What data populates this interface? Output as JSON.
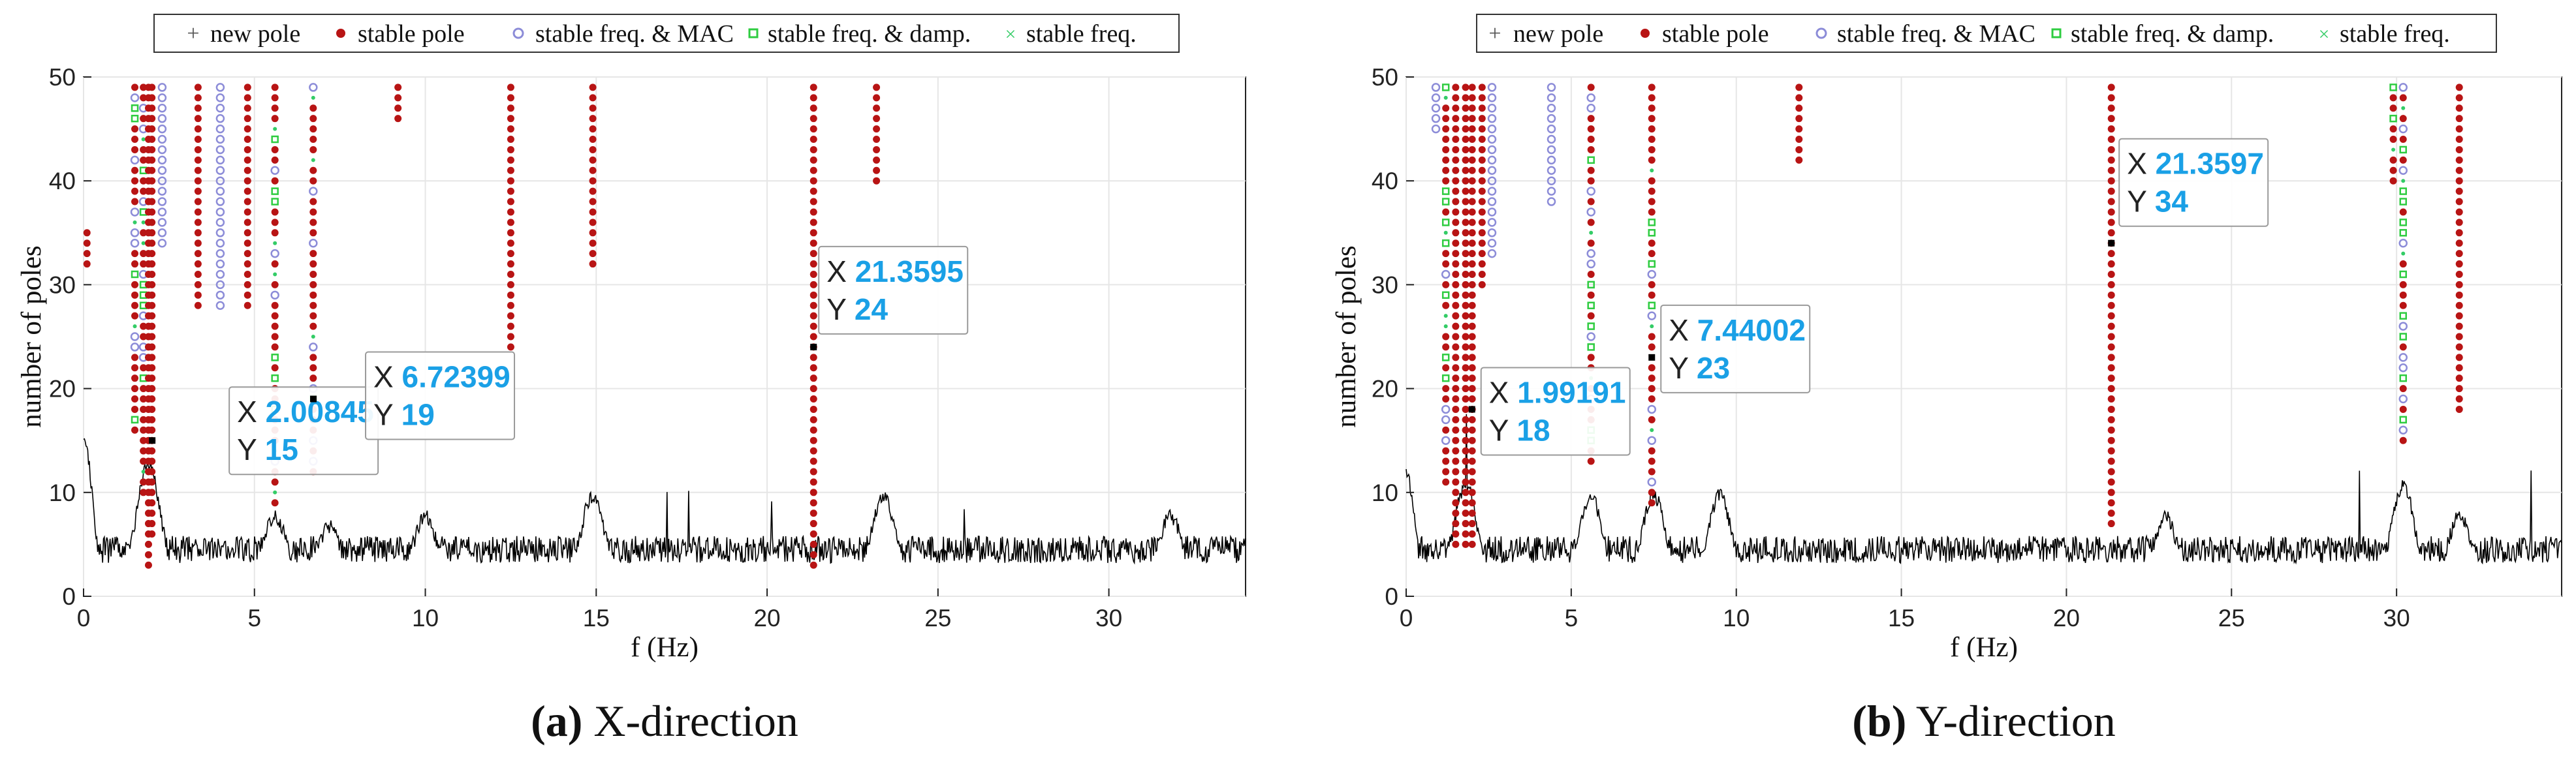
{
  "legend": {
    "new_pole": "new pole",
    "stable_pole": "stable pole",
    "stable_freq_mac": "stable freq. & MAC",
    "stable_freq_damp": "stable freq. & damp.",
    "stable_freq": "stable freq."
  },
  "colors": {
    "stable_pole": "#b81414",
    "stable_freq_mac": "#8c8cd8",
    "stable_freq_damp": "#2ecc40",
    "stable_freq": "#33cc66",
    "new_pole": "#555555",
    "datatip_value": "#1aa0e6",
    "psd": "#000000"
  },
  "chart_data": [
    {
      "type": "scatter",
      "subtype": "stabilization-diagram",
      "panel": "a",
      "caption_letter": "(a)",
      "caption_text": "X-direction",
      "xlabel": "f (Hz)",
      "ylabel": "number of poles",
      "xlim": [
        0,
        34
      ],
      "ylim": [
        0,
        50
      ],
      "xticks": [
        0,
        5,
        10,
        15,
        20,
        25,
        30
      ],
      "yticks": [
        0,
        10,
        20,
        30,
        40,
        50
      ],
      "grid": true,
      "legend_position": "top",
      "stable_columns": [
        {
          "f": 0.1,
          "from": 32,
          "to": 35,
          "kind": "stable_pole"
        },
        {
          "f": 1.5,
          "from": 16,
          "to": 49,
          "kind": "mixed"
        },
        {
          "f": 1.75,
          "from": 10,
          "to": 49,
          "kind": "mixed"
        },
        {
          "f": 1.9,
          "from": 3,
          "to": 49,
          "kind": "stable_pole"
        },
        {
          "f": 2.0,
          "from": 6,
          "to": 49,
          "kind": "stable_pole"
        },
        {
          "f": 2.3,
          "from": 34,
          "to": 49,
          "kind": "stable_freq_mac"
        },
        {
          "f": 3.35,
          "from": 28,
          "to": 49,
          "kind": "stable_pole"
        },
        {
          "f": 4.0,
          "from": 28,
          "to": 49,
          "kind": "stable_freq_mac"
        },
        {
          "f": 4.8,
          "from": 28,
          "to": 49,
          "kind": "stable_pole"
        },
        {
          "f": 5.6,
          "from": 9,
          "to": 49,
          "kind": "mixed"
        },
        {
          "f": 6.72,
          "from": 12,
          "to": 49,
          "kind": "mixed"
        },
        {
          "f": 9.2,
          "from": 46,
          "to": 49,
          "kind": "stable_pole"
        },
        {
          "f": 12.5,
          "from": 24,
          "to": 49,
          "kind": "stable_pole"
        },
        {
          "f": 14.9,
          "from": 32,
          "to": 49,
          "kind": "stable_pole"
        },
        {
          "f": 21.36,
          "from": 3,
          "to": 49,
          "kind": "stable_pole"
        },
        {
          "f": 23.2,
          "from": 40,
          "to": 49,
          "kind": "stable_pole"
        }
      ],
      "psd_peaks": [
        {
          "f": 0.0,
          "y": 15
        },
        {
          "f": 1.9,
          "y": 12
        },
        {
          "f": 5.6,
          "y": 7
        },
        {
          "f": 7.2,
          "y": 6
        },
        {
          "f": 10.0,
          "y": 7
        },
        {
          "f": 14.9,
          "y": 9
        },
        {
          "f": 23.4,
          "y": 9
        },
        {
          "f": 31.8,
          "y": 7
        }
      ],
      "datatips": [
        {
          "x_label": "X",
          "x_value": "2.00845",
          "y_label": "Y",
          "y_value": "15",
          "fx": 2.00845,
          "fy": 15
        },
        {
          "x_label": "X",
          "x_value": "6.72399",
          "y_label": "Y",
          "y_value": "19",
          "fx": 6.72399,
          "fy": 19
        },
        {
          "x_label": "X",
          "x_value": "21.3595",
          "y_label": "Y",
          "y_value": "24",
          "fx": 21.3595,
          "fy": 24
        }
      ]
    },
    {
      "type": "scatter",
      "subtype": "stabilization-diagram",
      "panel": "b",
      "caption_letter": "(b)",
      "caption_text": "Y-direction",
      "xlabel": "f (Hz)",
      "ylabel": "number of poles",
      "xlim": [
        0,
        35
      ],
      "ylim": [
        0,
        50
      ],
      "xticks": [
        0,
        5,
        10,
        15,
        20,
        25,
        30
      ],
      "yticks": [
        0,
        10,
        20,
        30,
        40,
        50
      ],
      "grid": true,
      "legend_position": "top",
      "stable_columns": [
        {
          "f": 0.9,
          "from": 45,
          "to": 49,
          "kind": "stable_freq_mac"
        },
        {
          "f": 1.2,
          "from": 11,
          "to": 49,
          "kind": "mixed"
        },
        {
          "f": 1.5,
          "from": 5,
          "to": 49,
          "kind": "stable_pole"
        },
        {
          "f": 1.8,
          "from": 5,
          "to": 49,
          "kind": "stable_pole"
        },
        {
          "f": 2.0,
          "from": 5,
          "to": 49,
          "kind": "stable_pole"
        },
        {
          "f": 2.3,
          "from": 30,
          "to": 49,
          "kind": "stable_pole"
        },
        {
          "f": 2.6,
          "from": 33,
          "to": 49,
          "kind": "stable_freq_mac"
        },
        {
          "f": 4.4,
          "from": 38,
          "to": 49,
          "kind": "stable_freq_mac"
        },
        {
          "f": 5.6,
          "from": 13,
          "to": 49,
          "kind": "mixed"
        },
        {
          "f": 7.44,
          "from": 9,
          "to": 49,
          "kind": "mixed"
        },
        {
          "f": 11.9,
          "from": 42,
          "to": 49,
          "kind": "stable_pole"
        },
        {
          "f": 21.36,
          "from": 7,
          "to": 49,
          "kind": "stable_pole"
        },
        {
          "f": 29.9,
          "from": 40,
          "to": 49,
          "kind": "mixed"
        },
        {
          "f": 30.2,
          "from": 15,
          "to": 49,
          "kind": "mixed"
        },
        {
          "f": 31.9,
          "from": 18,
          "to": 49,
          "kind": "stable_pole"
        }
      ],
      "psd_peaks": [
        {
          "f": 0.0,
          "y": 11
        },
        {
          "f": 1.8,
          "y": 10
        },
        {
          "f": 5.6,
          "y": 9
        },
        {
          "f": 7.5,
          "y": 9
        },
        {
          "f": 9.5,
          "y": 9
        },
        {
          "f": 23.0,
          "y": 7
        },
        {
          "f": 30.2,
          "y": 10
        },
        {
          "f": 31.9,
          "y": 7
        }
      ],
      "datatips": [
        {
          "x_label": "X",
          "x_value": "1.99191",
          "y_label": "Y",
          "y_value": "18",
          "fx": 1.99191,
          "fy": 18
        },
        {
          "x_label": "X",
          "x_value": "7.44002",
          "y_label": "Y",
          "y_value": "23",
          "fx": 7.44002,
          "fy": 23
        },
        {
          "x_label": "X",
          "x_value": "21.3597",
          "y_label": "Y",
          "y_value": "34",
          "fx": 21.3597,
          "fy": 34
        }
      ]
    }
  ]
}
